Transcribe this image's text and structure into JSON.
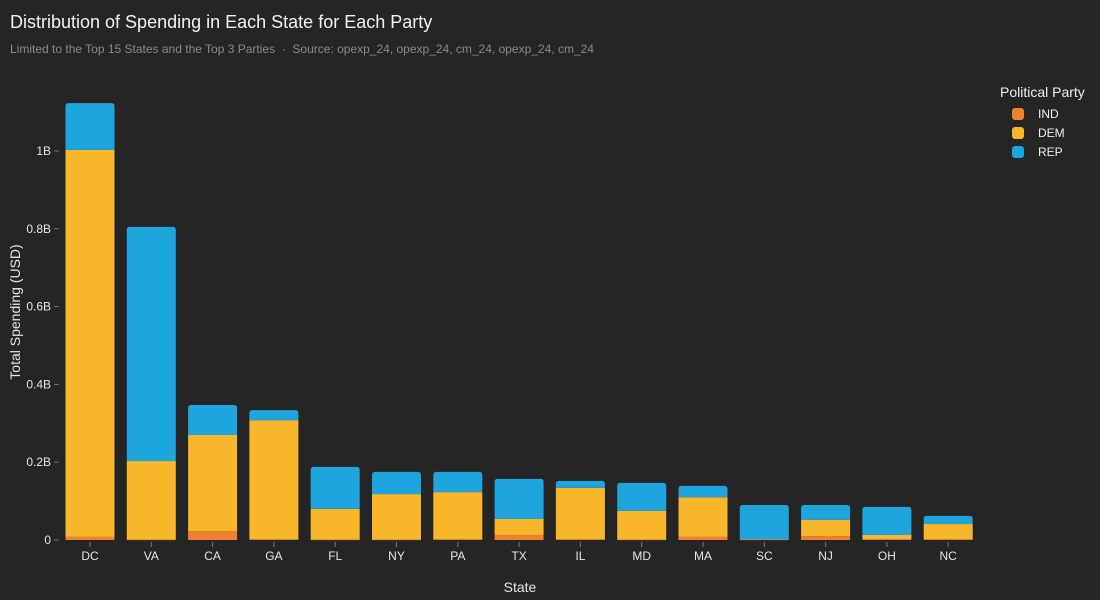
{
  "chart_data": {
    "type": "bar",
    "stacked": true,
    "title": "Distribution of Spending in Each State for Each Party",
    "subtitle": "Limited to the Top 15 States and the Top 3 Parties",
    "source": "Source: opexp_24, opexp_24, cm_24, opexp_24, cm_24",
    "xlabel": "State",
    "ylabel": "Total Spending (USD)",
    "ylim": [
      0,
      1.15
    ],
    "yunit": "B",
    "yticks": [
      0,
      0.2,
      0.4,
      0.6,
      0.8,
      1
    ],
    "ytick_labels": [
      "0",
      "0.2B",
      "0.4B",
      "0.6B",
      "0.8B",
      "1B"
    ],
    "grid": false,
    "legend_title": "Political Party",
    "legend_placement": "top-right",
    "categories": [
      "DC",
      "VA",
      "CA",
      "GA",
      "FL",
      "NY",
      "PA",
      "TX",
      "IL",
      "MD",
      "MA",
      "SC",
      "NJ",
      "OH",
      "NC"
    ],
    "series": [
      {
        "name": "IND",
        "color": "#f07f30",
        "values": [
          0.008,
          0.001,
          0.023,
          0.002,
          0.001,
          0.001,
          0.002,
          0.013,
          0.002,
          0.001,
          0.008,
          0.001,
          0.01,
          0.002,
          0.002
        ]
      },
      {
        "name": "DEM",
        "color": "#f8b62b",
        "values": [
          0.995,
          0.202,
          0.247,
          0.306,
          0.079,
          0.117,
          0.121,
          0.041,
          0.132,
          0.074,
          0.102,
          0.001,
          0.042,
          0.011,
          0.039
        ]
      },
      {
        "name": "REP",
        "color": "#1fa5dd",
        "values": [
          0.12,
          0.602,
          0.077,
          0.026,
          0.108,
          0.057,
          0.052,
          0.103,
          0.018,
          0.072,
          0.029,
          0.088,
          0.038,
          0.072,
          0.021
        ]
      }
    ]
  }
}
